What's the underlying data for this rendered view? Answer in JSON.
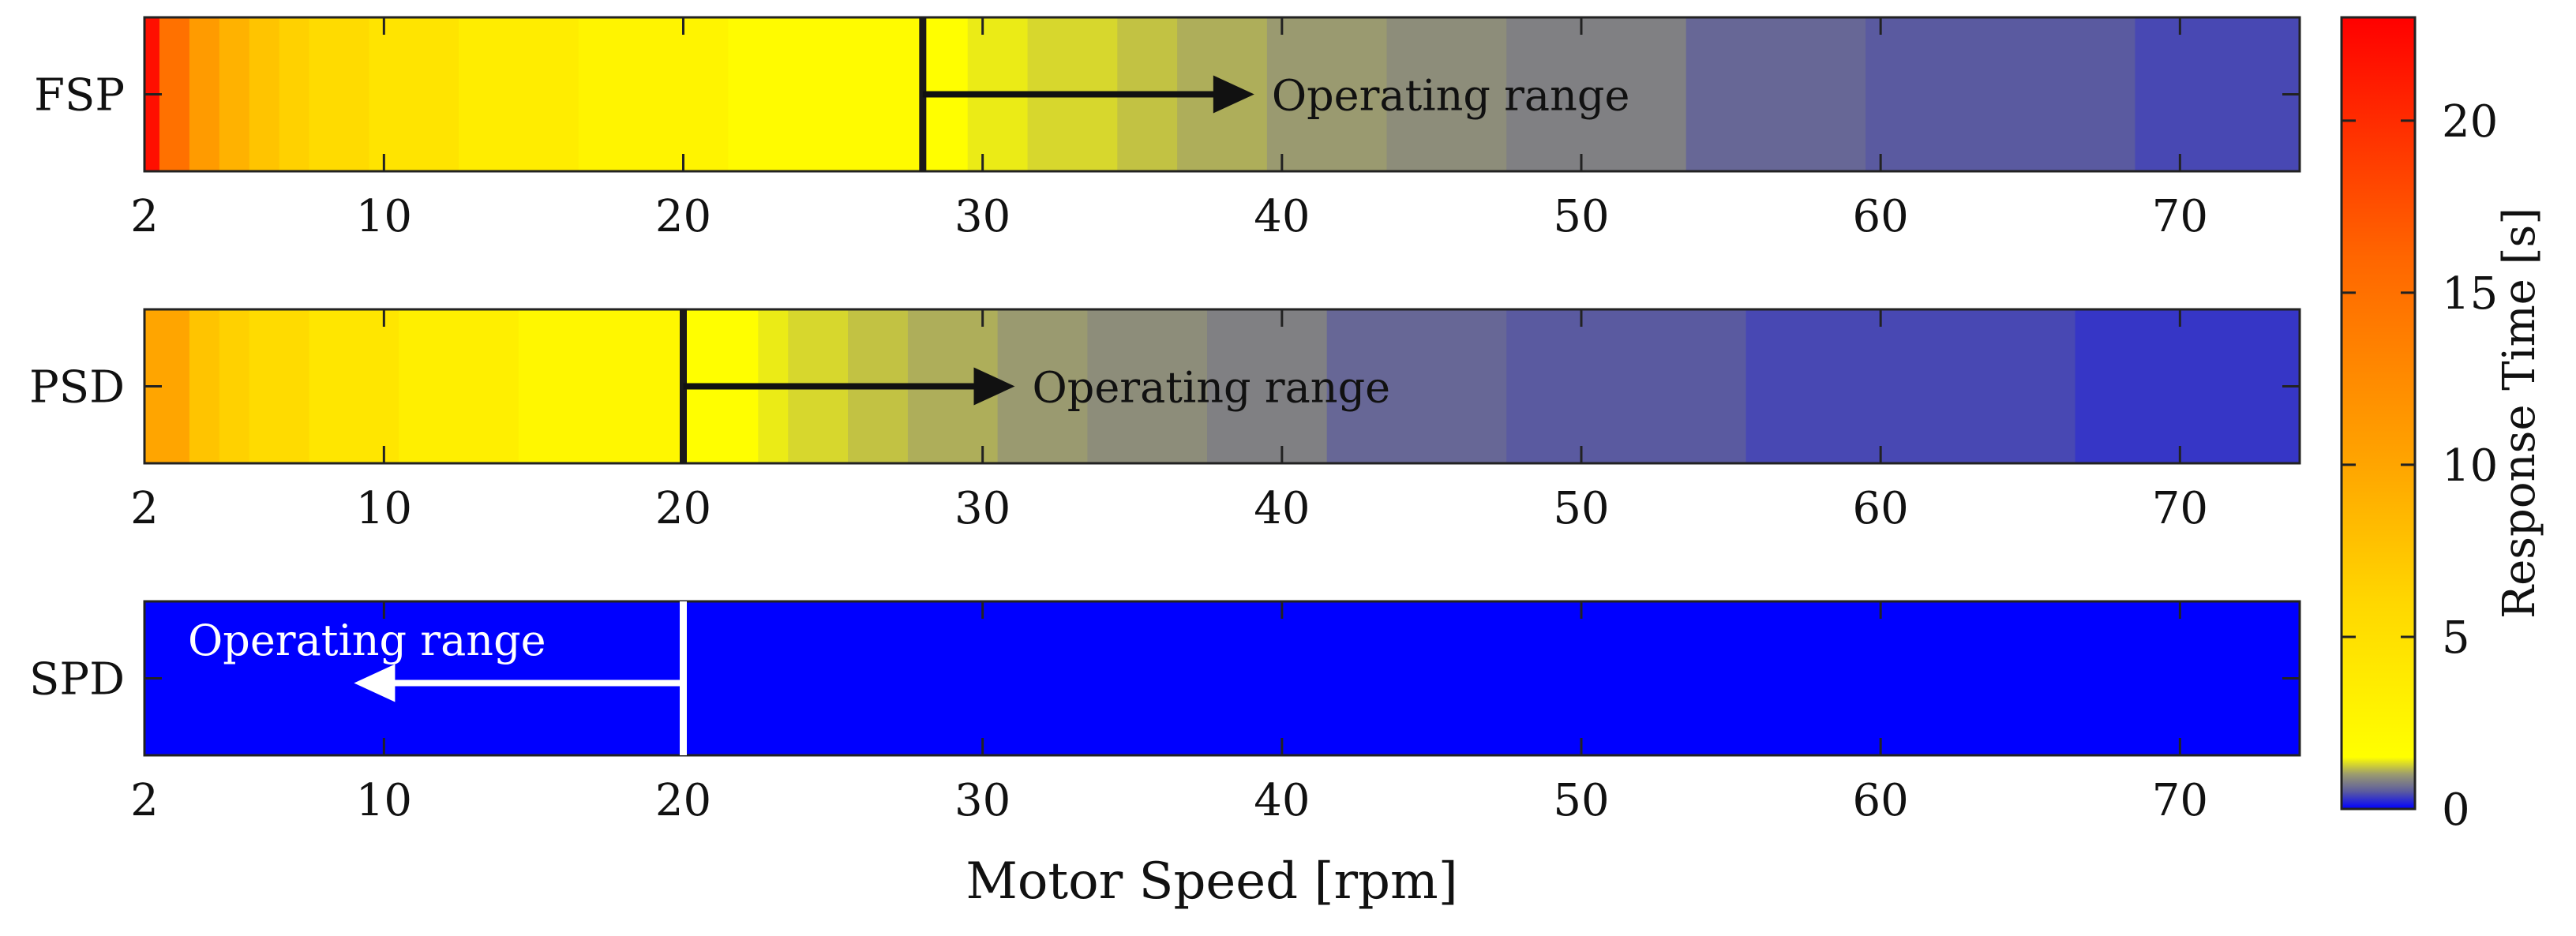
{
  "chart_data": {
    "type": "heatmap",
    "xlabel": "Motor Speed [rpm]",
    "x_tick_labels": [
      "2",
      "10",
      "20",
      "30",
      "40",
      "50",
      "60",
      "70"
    ],
    "x_ticks": [
      2,
      10,
      20,
      30,
      40,
      50,
      60,
      70
    ],
    "xlim": [
      2,
      74
    ],
    "colorbar": {
      "label": "Response Time [s]",
      "range": [
        0,
        23
      ],
      "tick_labels": [
        "0",
        "5",
        "10",
        "15",
        "20"
      ],
      "ticks": [
        0,
        5,
        10,
        15,
        20
      ],
      "colormap": [
        {
          "value": 0,
          "color": "#0000ff"
        },
        {
          "value": 0.5,
          "color": "#5a5aa0"
        },
        {
          "value": 1.0,
          "color": "#9a9a70"
        },
        {
          "value": 1.5,
          "color": "#ffff00"
        },
        {
          "value": 6,
          "color": "#ffd700"
        },
        {
          "value": 10,
          "color": "#ffa500"
        },
        {
          "value": 16,
          "color": "#ff6600"
        },
        {
          "value": 23,
          "color": "#ff0000"
        }
      ]
    },
    "series": [
      {
        "name": "FSP",
        "threshold": 28,
        "annotation": "Operating range",
        "annotation_side": "right",
        "segments": [
          {
            "x0": 2,
            "x1": 2.5,
            "value": 22
          },
          {
            "x0": 2.5,
            "x1": 3.5,
            "value": 15
          },
          {
            "x0": 3.5,
            "x1": 4.5,
            "value": 11
          },
          {
            "x0": 4.5,
            "x1": 5.5,
            "value": 9
          },
          {
            "x0": 5.5,
            "x1": 6.5,
            "value": 7.5
          },
          {
            "x0": 6.5,
            "x1": 7.5,
            "value": 6.5
          },
          {
            "x0": 7.5,
            "x1": 9.5,
            "value": 5.5
          },
          {
            "x0": 9.5,
            "x1": 12.5,
            "value": 4.5
          },
          {
            "x0": 12.5,
            "x1": 16.5,
            "value": 3.5
          },
          {
            "x0": 16.5,
            "x1": 21.5,
            "value": 2.7
          },
          {
            "x0": 21.5,
            "x1": 28,
            "value": 2.0
          },
          {
            "x0": 28,
            "x1": 29.5,
            "value": 1.6
          },
          {
            "x0": 29.5,
            "x1": 31.5,
            "value": 1.4
          },
          {
            "x0": 31.5,
            "x1": 34.5,
            "value": 1.3
          },
          {
            "x0": 34.5,
            "x1": 36.5,
            "value": 1.2
          },
          {
            "x0": 36.5,
            "x1": 39.5,
            "value": 1.1
          },
          {
            "x0": 39.5,
            "x1": 43.5,
            "value": 1.0
          },
          {
            "x0": 43.5,
            "x1": 47.5,
            "value": 0.9
          },
          {
            "x0": 47.5,
            "x1": 53.5,
            "value": 0.8
          },
          {
            "x0": 53.5,
            "x1": 59.5,
            "value": 0.6
          },
          {
            "x0": 59.5,
            "x1": 68.5,
            "value": 0.5
          },
          {
            "x0": 68.5,
            "x1": 74,
            "value": 0.4
          }
        ]
      },
      {
        "name": "PSD",
        "threshold": 20,
        "annotation": "Operating range",
        "annotation_side": "right",
        "segments": [
          {
            "x0": 2,
            "x1": 3.5,
            "value": 10
          },
          {
            "x0": 3.5,
            "x1": 4.5,
            "value": 7.5
          },
          {
            "x0": 4.5,
            "x1": 5.5,
            "value": 6.5
          },
          {
            "x0": 5.5,
            "x1": 7.5,
            "value": 5.5
          },
          {
            "x0": 7.5,
            "x1": 10.5,
            "value": 4.3
          },
          {
            "x0": 10.5,
            "x1": 14.5,
            "value": 3.3
          },
          {
            "x0": 14.5,
            "x1": 20,
            "value": 2.4
          },
          {
            "x0": 20,
            "x1": 22.5,
            "value": 1.6
          },
          {
            "x0": 22.5,
            "x1": 23.5,
            "value": 1.4
          },
          {
            "x0": 23.5,
            "x1": 25.5,
            "value": 1.3
          },
          {
            "x0": 25.5,
            "x1": 27.5,
            "value": 1.2
          },
          {
            "x0": 27.5,
            "x1": 30.5,
            "value": 1.1
          },
          {
            "x0": 30.5,
            "x1": 33.5,
            "value": 1.0
          },
          {
            "x0": 33.5,
            "x1": 37.5,
            "value": 0.9
          },
          {
            "x0": 37.5,
            "x1": 41.5,
            "value": 0.8
          },
          {
            "x0": 41.5,
            "x1": 47.5,
            "value": 0.6
          },
          {
            "x0": 47.5,
            "x1": 55.5,
            "value": 0.5
          },
          {
            "x0": 55.5,
            "x1": 66.5,
            "value": 0.4
          },
          {
            "x0": 66.5,
            "x1": 74,
            "value": 0.3
          }
        ]
      },
      {
        "name": "SPD",
        "threshold": 20,
        "annotation": "Operating range",
        "annotation_side": "left",
        "segments": [
          {
            "x0": 2,
            "x1": 74,
            "value": 0
          }
        ]
      }
    ]
  }
}
